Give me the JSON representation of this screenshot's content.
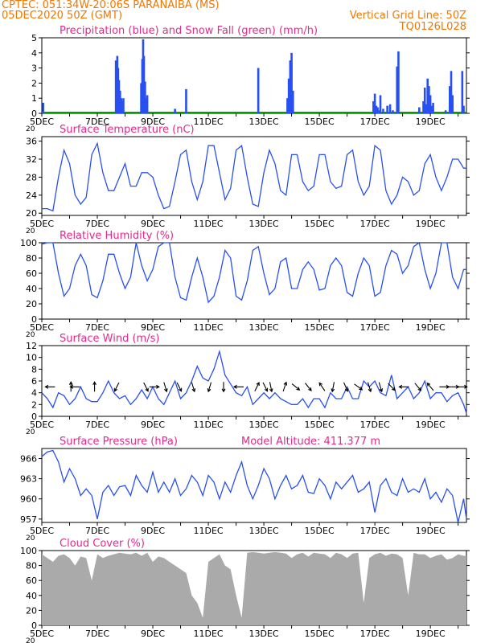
{
  "header": {
    "station": "CPTEC:  051:34W-20:06S  PARANAIBA (MS)",
    "run": "05DEC2020 50Z (GMT)",
    "grid_note": "Vertical Grid Line: 50Z",
    "code": "TQ0126L028"
  },
  "colors": {
    "header": "#f07800",
    "title": "#e8288c",
    "line": "#2850f0",
    "wind_line": "#2850f0",
    "snow": "#00a000",
    "cloud": "#aaaaaa",
    "axis": "#000000"
  },
  "x_axis": {
    "tick_labels": [
      "5DEC",
      "7DEC",
      "9DEC",
      "11DEC",
      "13DEC",
      "15DEC",
      "17DEC",
      "19DEC"
    ],
    "start_day": 5,
    "end_day": 20.3,
    "label_under": "20"
  },
  "chart_data": [
    {
      "id": "precip",
      "type": "bar",
      "title": "Precipitation (blue) and Snow Fall (green) (mm/h)",
      "ylim": [
        0,
        5
      ],
      "yticks": [
        0,
        1,
        2,
        3,
        4,
        5
      ],
      "series": [
        {
          "name": "Precipitation",
          "x": [
            5.05,
            7.67,
            7.72,
            7.75,
            7.78,
            7.82,
            7.86,
            7.9,
            7.94,
            8.58,
            8.62,
            8.65,
            8.68,
            8.72,
            8.76,
            8.8,
            9.8,
            10.2,
            12.8,
            13.85,
            13.9,
            13.95,
            14.0,
            14.05,
            16.95,
            17.0,
            17.05,
            17.1,
            17.15,
            17.2,
            17.3,
            17.45,
            17.55,
            17.65,
            17.8,
            17.85,
            18.6,
            18.75,
            18.8,
            18.85,
            18.9,
            18.95,
            19.0,
            19.05,
            19.1,
            19.55,
            19.7,
            19.75,
            19.8,
            20.15,
            20.2
          ],
          "values": [
            0.7,
            3.5,
            3.8,
            3.0,
            2.2,
            1.5,
            1.0,
            0.8,
            1.0,
            2.0,
            3.6,
            4.9,
            3.8,
            2.1,
            1.0,
            1.2,
            0.3,
            1.6,
            3.0,
            1.0,
            2.3,
            3.5,
            4.0,
            1.5,
            0.8,
            1.3,
            0.5,
            0.4,
            0.2,
            1.2,
            0.3,
            0.5,
            0.6,
            0.2,
            3.1,
            4.1,
            0.4,
            0.8,
            1.7,
            0.6,
            2.3,
            1.8,
            1.2,
            0.5,
            0.7,
            0.2,
            1.8,
            2.8,
            1.2,
            2.8,
            0.5
          ]
        },
        {
          "name": "Snow Fall",
          "x": [
            5.0,
            20.3
          ],
          "values": [
            0.0,
            0.0
          ]
        }
      ]
    },
    {
      "id": "temperature",
      "type": "line",
      "title": "Surface Temperature (nC)",
      "ylim": [
        19.5,
        37
      ],
      "yticks": [
        20,
        24,
        28,
        32,
        36
      ],
      "x": [
        5.0,
        5.2,
        5.4,
        5.6,
        5.8,
        6.0,
        6.2,
        6.4,
        6.6,
        6.8,
        7.0,
        7.2,
        7.4,
        7.6,
        7.8,
        8.0,
        8.2,
        8.4,
        8.6,
        8.8,
        9.0,
        9.2,
        9.4,
        9.6,
        9.8,
        10.0,
        10.2,
        10.4,
        10.6,
        10.8,
        11.0,
        11.2,
        11.4,
        11.6,
        11.8,
        12.0,
        12.2,
        12.4,
        12.6,
        12.8,
        13.0,
        13.2,
        13.4,
        13.6,
        13.8,
        14.0,
        14.2,
        14.4,
        14.6,
        14.8,
        15.0,
        15.2,
        15.4,
        15.6,
        15.8,
        16.0,
        16.2,
        16.4,
        16.6,
        16.8,
        17.0,
        17.2,
        17.4,
        17.6,
        17.8,
        18.0,
        18.2,
        18.4,
        18.6,
        18.8,
        19.0,
        19.2,
        19.4,
        19.6,
        19.8,
        20.0,
        20.2,
        20.3
      ],
      "values": [
        21,
        21,
        20.5,
        28,
        34,
        31,
        24,
        22,
        23.5,
        33,
        35.5,
        29,
        25,
        25,
        28,
        31,
        26,
        26,
        29,
        29,
        28,
        24,
        21,
        21.5,
        27,
        33,
        34,
        27,
        23,
        27,
        35,
        35,
        29,
        23,
        25.5,
        34,
        35,
        28,
        22,
        21.5,
        29,
        34,
        31,
        25,
        24,
        33,
        33,
        27,
        25,
        26,
        33,
        33,
        27,
        25.5,
        26,
        33,
        34,
        27,
        24,
        26,
        35,
        34,
        25,
        22,
        24,
        28,
        27,
        24,
        25,
        31,
        33,
        28,
        25,
        28,
        32,
        32,
        30,
        30
      ]
    },
    {
      "id": "humidity",
      "type": "line",
      "title": "Relative Humidity (%)",
      "ylim": [
        0,
        100
      ],
      "yticks": [
        0,
        20,
        40,
        60,
        80,
        100
      ],
      "x": [
        5.0,
        5.2,
        5.4,
        5.6,
        5.8,
        6.0,
        6.2,
        6.4,
        6.6,
        6.8,
        7.0,
        7.2,
        7.4,
        7.6,
        7.8,
        8.0,
        8.2,
        8.4,
        8.6,
        8.8,
        9.0,
        9.2,
        9.4,
        9.6,
        9.8,
        10.0,
        10.2,
        10.4,
        10.6,
        10.8,
        11.0,
        11.2,
        11.4,
        11.6,
        11.8,
        12.0,
        12.2,
        12.4,
        12.6,
        12.8,
        13.0,
        13.2,
        13.4,
        13.6,
        13.8,
        14.0,
        14.2,
        14.4,
        14.6,
        14.8,
        15.0,
        15.2,
        15.4,
        15.6,
        15.8,
        16.0,
        16.2,
        16.4,
        16.6,
        16.8,
        17.0,
        17.2,
        17.4,
        17.6,
        17.8,
        18.0,
        18.2,
        18.4,
        18.6,
        18.8,
        19.0,
        19.2,
        19.4,
        19.6,
        19.8,
        20.0,
        20.2,
        20.3
      ],
      "values": [
        98,
        100,
        100,
        60,
        30,
        40,
        70,
        85,
        70,
        32,
        28,
        50,
        85,
        85,
        60,
        40,
        55,
        100,
        70,
        50,
        65,
        95,
        100,
        100,
        55,
        28,
        25,
        55,
        80,
        55,
        22,
        30,
        55,
        90,
        80,
        30,
        25,
        50,
        90,
        95,
        60,
        32,
        40,
        75,
        80,
        40,
        40,
        65,
        75,
        65,
        38,
        40,
        70,
        80,
        70,
        35,
        30,
        60,
        80,
        70,
        30,
        35,
        70,
        90,
        85,
        60,
        70,
        95,
        100,
        65,
        40,
        60,
        100,
        100,
        55,
        40,
        65,
        65
      ]
    },
    {
      "id": "wind",
      "type": "line",
      "title": "Surface Wind (m/s)",
      "ylim": [
        0,
        12
      ],
      "yticks": [
        0,
        2,
        4,
        6,
        8,
        10,
        12
      ],
      "x": [
        5.0,
        5.2,
        5.4,
        5.6,
        5.8,
        6.0,
        6.2,
        6.4,
        6.6,
        6.8,
        7.0,
        7.2,
        7.4,
        7.6,
        7.8,
        8.0,
        8.2,
        8.4,
        8.6,
        8.8,
        9.0,
        9.2,
        9.4,
        9.6,
        9.8,
        10.0,
        10.2,
        10.4,
        10.6,
        10.8,
        11.0,
        11.2,
        11.4,
        11.6,
        11.8,
        12.0,
        12.2,
        12.4,
        12.6,
        12.8,
        13.0,
        13.2,
        13.4,
        13.6,
        13.8,
        14.0,
        14.2,
        14.4,
        14.6,
        14.8,
        15.0,
        15.2,
        15.4,
        15.6,
        15.8,
        16.0,
        16.2,
        16.4,
        16.6,
        16.8,
        17.0,
        17.2,
        17.4,
        17.6,
        17.8,
        18.0,
        18.2,
        18.4,
        18.6,
        18.8,
        19.0,
        19.2,
        19.4,
        19.6,
        19.8,
        20.0,
        20.2,
        20.3
      ],
      "values": [
        4,
        3,
        1.5,
        4,
        3.5,
        2,
        3,
        5,
        3,
        2.5,
        2.5,
        4,
        6,
        4,
        3,
        3.5,
        2,
        3,
        4.5,
        3,
        5,
        3,
        2,
        4,
        6,
        3,
        4,
        6,
        8.5,
        6.5,
        6,
        8,
        11,
        7,
        5.5,
        4,
        3.5,
        5,
        2,
        3,
        4,
        3,
        4,
        3,
        2.5,
        2,
        2,
        3,
        1.5,
        3,
        3,
        1.5,
        4,
        3,
        3,
        5,
        3,
        3,
        6,
        5,
        6,
        4,
        3.5,
        7,
        3,
        4,
        5,
        3,
        4,
        6,
        3,
        4,
        4,
        2.5,
        3.5,
        4,
        2,
        0.5
      ],
      "arrows": {
        "x": [
          5.3,
          6.05,
          6.2,
          6.9,
          7.7,
          8.75,
          9.05,
          9.45,
          9.95,
          10.45,
          11.05,
          11.55,
          12.1,
          12.75,
          13.05,
          13.25,
          13.75,
          14.15,
          14.6,
          15.1,
          15.5,
          15.95,
          16.4,
          16.8,
          17.2,
          17.6,
          18.05,
          18.55,
          19.0,
          19.5,
          19.85,
          20.15
        ],
        "u": [
          -1,
          0,
          -1,
          0,
          -0.5,
          0.5,
          0.7,
          0.3,
          0.5,
          0.3,
          -0.3,
          0,
          -1,
          0.3,
          0.5,
          0.2,
          0.2,
          0.5,
          0.4,
          -0.2,
          -0.2,
          0.3,
          0.7,
          0.3,
          0.3,
          0.5,
          -0.4,
          0.5,
          -0.5,
          0.3,
          1,
          1
        ],
        "v": [
          0,
          1,
          0,
          1,
          -1,
          -1,
          0,
          -1,
          -1,
          -1,
          -1,
          -1,
          0,
          0.6,
          -1,
          -1,
          0.6,
          -0.4,
          -0.5,
          0.3,
          -1,
          -0.7,
          -0.5,
          -1,
          -1,
          -0.5,
          0,
          -0.6,
          0.6,
          0,
          0,
          0
        ]
      }
    },
    {
      "id": "pressure",
      "type": "line",
      "title": "Surface Pressure (hPa)",
      "annotation": "Model Altitude: 411.377 m",
      "ylim": [
        956.5,
        967.5
      ],
      "yticks": [
        957,
        960,
        963,
        966
      ],
      "x": [
        5.0,
        5.2,
        5.4,
        5.6,
        5.8,
        6.0,
        6.2,
        6.4,
        6.6,
        6.8,
        7.0,
        7.2,
        7.4,
        7.6,
        7.8,
        8.0,
        8.2,
        8.4,
        8.6,
        8.8,
        9.0,
        9.2,
        9.4,
        9.6,
        9.8,
        10.0,
        10.2,
        10.4,
        10.6,
        10.8,
        11.0,
        11.2,
        11.4,
        11.6,
        11.8,
        12.0,
        12.2,
        12.4,
        12.6,
        12.8,
        13.0,
        13.2,
        13.4,
        13.6,
        13.8,
        14.0,
        14.2,
        14.4,
        14.6,
        14.8,
        15.0,
        15.2,
        15.4,
        15.6,
        15.8,
        16.0,
        16.2,
        16.4,
        16.6,
        16.8,
        17.0,
        17.2,
        17.4,
        17.6,
        17.8,
        18.0,
        18.2,
        18.4,
        18.6,
        18.8,
        19.0,
        19.2,
        19.4,
        19.6,
        19.8,
        20.0,
        20.2,
        20.3
      ],
      "values": [
        966.3,
        967,
        967.2,
        965.5,
        962.5,
        964.5,
        963,
        960.5,
        961.5,
        960.5,
        957,
        961,
        962,
        960.5,
        961.8,
        962,
        960.5,
        963.5,
        962,
        961,
        964,
        961,
        962.5,
        961,
        963,
        960.5,
        961.5,
        963.5,
        962.5,
        960.5,
        963.5,
        962.5,
        960,
        962.5,
        961,
        963.5,
        965.5,
        962,
        960,
        962,
        964.5,
        963,
        960,
        962,
        963.5,
        961.5,
        962,
        963.5,
        961,
        960.8,
        963,
        962,
        960,
        962.5,
        961.5,
        962.5,
        963.5,
        961,
        961.5,
        962.5,
        958,
        962,
        963,
        961,
        960.5,
        963,
        961,
        961.5,
        961,
        963,
        960,
        961,
        959.5,
        961.5,
        960.5,
        956.5,
        960,
        957
      ]
    },
    {
      "id": "cloud",
      "type": "area",
      "title": "Cloud Cover (%)",
      "ylim": [
        0,
        100
      ],
      "yticks": [
        0,
        20,
        40,
        60,
        80,
        100
      ],
      "x": [
        5.0,
        5.2,
        5.4,
        5.6,
        5.8,
        6.0,
        6.2,
        6.4,
        6.6,
        6.8,
        7.0,
        7.2,
        7.4,
        7.6,
        7.8,
        8.0,
        8.2,
        8.4,
        8.6,
        8.8,
        9.0,
        9.2,
        9.4,
        9.6,
        9.8,
        10.0,
        10.2,
        10.4,
        10.6,
        10.8,
        11.0,
        11.2,
        11.4,
        11.6,
        11.8,
        12.0,
        12.2,
        12.4,
        12.6,
        12.8,
        13.0,
        13.2,
        13.4,
        13.6,
        13.8,
        14.0,
        14.2,
        14.4,
        14.6,
        14.8,
        15.0,
        15.2,
        15.4,
        15.6,
        15.8,
        16.0,
        16.2,
        16.4,
        16.6,
        16.8,
        17.0,
        17.2,
        17.4,
        17.6,
        17.8,
        18.0,
        18.2,
        18.4,
        18.6,
        18.8,
        19.0,
        19.2,
        19.4,
        19.6,
        19.8,
        20.0,
        20.2,
        20.3
      ],
      "values": [
        95,
        90,
        85,
        93,
        95,
        90,
        80,
        92,
        90,
        60,
        95,
        90,
        93,
        95,
        97,
        96,
        95,
        97,
        93,
        97,
        85,
        92,
        90,
        85,
        80,
        75,
        70,
        40,
        30,
        10,
        85,
        90,
        95,
        80,
        75,
        40,
        10,
        97,
        98,
        97,
        96,
        97,
        98,
        97,
        96,
        90,
        95,
        97,
        92,
        97,
        96,
        95,
        90,
        97,
        95,
        90,
        96,
        97,
        30,
        90,
        95,
        97,
        93,
        96,
        95,
        90,
        40,
        97,
        95,
        95,
        90,
        93,
        95,
        88,
        90,
        95,
        93,
        93
      ]
    }
  ]
}
